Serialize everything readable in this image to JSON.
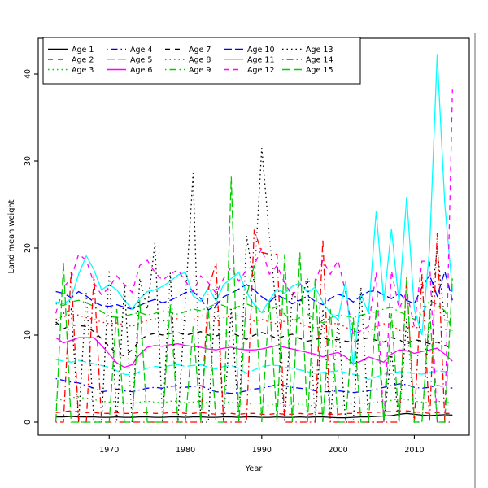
{
  "chart_data": {
    "type": "line",
    "title": "",
    "xlabel": "Year",
    "ylabel": "Land mean weight",
    "x": {
      "start": 1963,
      "end": 2015,
      "step": 1
    },
    "x_ticks": [
      1970,
      1980,
      1990,
      2000,
      2010
    ],
    "y_ticks": [
      0,
      10,
      20,
      30,
      40
    ],
    "xlim": [
      1960.9,
      2017.2
    ],
    "ylim": [
      0,
      44.1
    ],
    "grid": "off",
    "legend": {
      "position": "top-left-inside",
      "columns": 3,
      "rows_per_column": 3,
      "border": true
    },
    "palette": {
      "black": "#000000",
      "red": "#FF0000",
      "green": "#00CD00",
      "blue": "#0000FF",
      "cyan": "#00FFFF",
      "magenta": "#FF00FF"
    },
    "series": [
      {
        "name": "Age 1",
        "color": "#000000",
        "linetype": "solid",
        "values": [
          0.6,
          0.6,
          0.65,
          0.6,
          0.6,
          0.6,
          0.55,
          0.55,
          0.6,
          0.55,
          0.55,
          0.6,
          0.6,
          0.55,
          0.55,
          0.6,
          0.6,
          0.55,
          0.6,
          0.6,
          0.55,
          0.55,
          0.6,
          0.6,
          0.55,
          0.6,
          0.6,
          0.55,
          0.55,
          0.6,
          0.55,
          0.55,
          0.6,
          0.55,
          0.6,
          0.6,
          0.55,
          0.5,
          0.5,
          0.55,
          0.6,
          0.6,
          0.65,
          0.7,
          0.75,
          0.9,
          1.0,
          0.9,
          0.8,
          0.75,
          0.8,
          0.85,
          0.8
        ]
      },
      {
        "name": "Age 2",
        "color": "#FF0000",
        "linetype": "dashed",
        "values": [
          1.1,
          1.2,
          1.3,
          1.2,
          1.1,
          1.1,
          1.0,
          1.0,
          1.1,
          1.0,
          1.0,
          1.1,
          1.1,
          1.0,
          1.0,
          1.1,
          1.1,
          1.0,
          1.0,
          1.1,
          1.0,
          0.9,
          1.0,
          1.0,
          0.9,
          1.0,
          1.0,
          0.9,
          0.9,
          1.0,
          0.9,
          0.9,
          1.0,
          0.9,
          1.0,
          1.0,
          0.9,
          0.9,
          1.0,
          1.0,
          1.1,
          1.1,
          1.1,
          1.2,
          1.2,
          1.3,
          1.3,
          1.2,
          1.1,
          1.0,
          1.1,
          1.0,
          1.0
        ]
      },
      {
        "name": "Age 3",
        "color": "#00CD00",
        "linetype": "dotted",
        "values": [
          2.5,
          2.6,
          2.8,
          2.9,
          2.7,
          2.6,
          2.4,
          2.3,
          2.4,
          2.2,
          2.1,
          2.3,
          2.4,
          2.3,
          2.2,
          2.4,
          2.4,
          2.2,
          2.3,
          2.4,
          2.2,
          2.1,
          2.3,
          2.3,
          2.1,
          2.0,
          2.2,
          2.1,
          1.9,
          2.2,
          2.0,
          1.9,
          2.1,
          1.8,
          2.0,
          2.1,
          1.9,
          1.8,
          2.0,
          2.1,
          2.2,
          2.1,
          2.3,
          2.4,
          2.5,
          2.7,
          2.6,
          2.4,
          2.3,
          2.2,
          2.4,
          2.3,
          2.2
        ]
      },
      {
        "name": "Age 4",
        "color": "#0000FF",
        "linetype": "dotdash",
        "values": [
          5.0,
          4.8,
          4.6,
          4.5,
          4.2,
          3.9,
          3.5,
          3.6,
          3.8,
          3.6,
          3.5,
          3.7,
          3.9,
          4.0,
          3.9,
          4.1,
          4.2,
          4.0,
          4.1,
          4.2,
          3.8,
          3.5,
          3.4,
          3.3,
          3.4,
          3.6,
          3.8,
          3.9,
          4.1,
          4.3,
          4.2,
          4.0,
          3.9,
          3.8,
          3.6,
          3.5,
          3.5,
          3.6,
          3.5,
          3.4,
          3.5,
          3.6,
          3.8,
          4.0,
          4.2,
          4.4,
          4.3,
          4.0,
          3.9,
          4.0,
          4.2,
          4.1,
          3.9
        ]
      },
      {
        "name": "Age 5",
        "color": "#00FFFF",
        "linetype": "longdash",
        "values": [
          7.2,
          7.0,
          6.9,
          7.1,
          6.9,
          6.7,
          6.5,
          6.3,
          5.9,
          5.5,
          5.4,
          5.8,
          6.2,
          6.4,
          6.3,
          6.5,
          6.6,
          6.4,
          6.5,
          6.6,
          6.3,
          6.1,
          6.4,
          6.5,
          6.2,
          5.6,
          6.0,
          6.4,
          6.5,
          6.5,
          6.3,
          6.2,
          6.0,
          5.8,
          5.6,
          5.7,
          5.8,
          5.9,
          5.7,
          5.5,
          5.3,
          4.9,
          5.2,
          5.5,
          5.6,
          5.8,
          5.7,
          5.6,
          5.5,
          5.7,
          5.9,
          5.8,
          5.6
        ]
      },
      {
        "name": "Age 6",
        "color": "#FF00FF",
        "linetype": "solid",
        "values": [
          9.7,
          9.1,
          9.4,
          9.7,
          9.7,
          9.7,
          8.8,
          7.8,
          6.8,
          6.3,
          6.6,
          7.8,
          8.6,
          8.8,
          8.7,
          8.9,
          9.0,
          8.8,
          8.7,
          8.6,
          8.4,
          8.3,
          8.5,
          8.6,
          8.4,
          8.3,
          8.3,
          8.4,
          8.6,
          8.8,
          8.6,
          8.4,
          8.2,
          8.0,
          7.8,
          7.5,
          7.8,
          8.0,
          7.5,
          6.7,
          7.0,
          7.5,
          7.2,
          6.9,
          7.8,
          8.3,
          8.2,
          7.9,
          8.1,
          8.3,
          8.5,
          7.8,
          7.0
        ]
      },
      {
        "name": "Age 7",
        "color": "#000000",
        "linetype": "dashed",
        "values": [
          11.5,
          10.7,
          11.2,
          11.1,
          11.0,
          10.4,
          9.6,
          8.7,
          7.9,
          7.6,
          8.3,
          9.4,
          10.0,
          10.2,
          10.0,
          10.2,
          10.3,
          10.0,
          10.2,
          10.4,
          10.0,
          9.9,
          10.2,
          10.3,
          9.9,
          9.5,
          10.0,
          10.3,
          10.0,
          9.6,
          9.9,
          10.1,
          9.6,
          9.3,
          9.5,
          9.7,
          9.4,
          9.5,
          9.3,
          9.2,
          9.5,
          9.7,
          9.4,
          9.2,
          9.7,
          9.5,
          8.9,
          9.5,
          9.3,
          9.0,
          9.2,
          8.8,
          8.5
        ]
      },
      {
        "name": "Age 8",
        "color": "#FF0000",
        "linetype": "dotted",
        "values": [
          11.8,
          12.1,
          12.4,
          12.3,
          12.0,
          11.8,
          11.5,
          11.3,
          11.4,
          11.2,
          11.0,
          11.4,
          11.7,
          11.9,
          11.6,
          11.8,
          11.9,
          11.6,
          11.8,
          12.2,
          12.3,
          11.9,
          12.0,
          12.2,
          12.3,
          11.9,
          11.6,
          11.8,
          11.5,
          11.3,
          11.6,
          11.8,
          11.4,
          11.0,
          10.8,
          11.0,
          11.2,
          11.4,
          10.9,
          10.5,
          10.2,
          10.4,
          11.0,
          11.3,
          11.2,
          10.5,
          10.8,
          11.0,
          10.6,
          10.9,
          11.2,
          10.7,
          10.3
        ]
      },
      {
        "name": "Age 9",
        "color": "#00CD00",
        "linetype": "dotdash",
        "values": [
          13.6,
          13.4,
          13.8,
          14.0,
          13.7,
          13.3,
          12.7,
          12.2,
          12.0,
          12.2,
          12.4,
          12.6,
          12.3,
          12.5,
          12.8,
          12.6,
          12.4,
          12.7,
          13.0,
          12.8,
          13.2,
          13.6,
          13.4,
          12.9,
          13.3,
          13.6,
          13.2,
          12.6,
          12.9,
          13.3,
          12.4,
          11.6,
          12.0,
          12.4,
          11.8,
          11.4,
          12.0,
          12.3,
          12.2,
          12.0,
          12.3,
          12.5,
          12.7,
          13.0,
          13.2,
          12.7,
          12.3,
          11.8,
          12.5,
          14.0,
          13.5,
          12.8,
          10.5
        ]
      },
      {
        "name": "Age 10",
        "color": "#0000FF",
        "linetype": "longdash",
        "values": [
          15.0,
          14.8,
          14.3,
          15.0,
          14.5,
          13.8,
          13.4,
          13.3,
          13.5,
          13.2,
          13.0,
          13.4,
          13.8,
          14.1,
          13.7,
          14.0,
          14.4,
          14.9,
          15.0,
          14.2,
          12.9,
          13.4,
          14.4,
          14.8,
          15.3,
          15.8,
          15.2,
          14.4,
          13.8,
          14.6,
          14.2,
          13.6,
          14.0,
          14.5,
          13.9,
          13.5,
          14.2,
          14.7,
          14.4,
          13.8,
          14.5,
          15.0,
          15.1,
          14.6,
          14.2,
          14.8,
          14.0,
          13.6,
          15.5,
          16.9,
          14.5,
          17.3,
          14.0
        ]
      },
      {
        "name": "Age 11",
        "color": "#00FFFF",
        "linetype": "solid",
        "values": [
          13.8,
          13.6,
          14.2,
          17.0,
          19.1,
          17.5,
          15.2,
          15.8,
          15.2,
          14.0,
          13.0,
          14.2,
          15.0,
          15.2,
          15.6,
          16.2,
          16.9,
          17.2,
          14.5,
          13.9,
          15.5,
          13.9,
          15.8,
          16.5,
          17.2,
          14.9,
          13.5,
          12.6,
          14.0,
          15.3,
          14.8,
          15.6,
          16.0,
          14.9,
          15.5,
          13.8,
          12.5,
          11.8,
          16.2,
          6.5,
          14.7,
          12.5,
          24.2,
          13.9,
          22.2,
          13.6,
          25.9,
          13.0,
          10.0,
          20.0,
          42.2,
          25.0,
          15.0
        ]
      },
      {
        "name": "Age 12",
        "color": "#FF00FF",
        "linetype": "dashed",
        "values": [
          12.5,
          15.5,
          16.5,
          19.3,
          18.6,
          16.0,
          14.6,
          15.5,
          16.8,
          15.8,
          14.9,
          18.0,
          18.6,
          17.2,
          16.3,
          17.0,
          17.5,
          16.2,
          15.0,
          16.8,
          16.0,
          14.8,
          16.5,
          17.8,
          16.2,
          17.5,
          18.0,
          20.0,
          17.0,
          18.0,
          16.0,
          14.5,
          15.8,
          16.2,
          16.0,
          18.6,
          17.0,
          18.6,
          14.9,
          10.0,
          10.5,
          11.0,
          17.2,
          0,
          17.4,
          13.0,
          15.0,
          11.0,
          18.5,
          18.5,
          0,
          0,
          38.2
        ]
      },
      {
        "name": "Age 13",
        "color": "#000000",
        "linetype": "dotted",
        "values": [
          11.2,
          12.5,
          13.0,
          0,
          15.0,
          0,
          0,
          17.5,
          0,
          15.8,
          0,
          16.5,
          13.0,
          20.6,
          0,
          17.2,
          0,
          14.0,
          28.6,
          0,
          0,
          16.0,
          0,
          13.0,
          0,
          21.4,
          16.0,
          31.5,
          21.4,
          12.0,
          0,
          15.0,
          13.5,
          16.5,
          0,
          13.0,
          0,
          12.0,
          0,
          0,
          15.5,
          0,
          0,
          0,
          8.0,
          0,
          11.9,
          0,
          0,
          12.0,
          20.0,
          11.5,
          12.0
        ]
      },
      {
        "name": "Age 14",
        "color": "#FF0000",
        "linetype": "dotdash",
        "values": [
          0,
          0,
          17.4,
          0,
          0,
          16.9,
          0,
          0,
          0,
          0,
          0,
          0,
          0,
          0,
          0,
          0,
          0,
          0,
          0,
          0,
          15.3,
          18.3,
          0,
          0,
          0,
          0,
          22.1,
          19.5,
          19.3,
          19.3,
          0,
          0,
          0,
          0,
          0,
          21.0,
          0,
          0,
          0,
          0,
          0,
          0,
          0,
          0,
          0,
          0,
          16.7,
          0,
          17.0,
          0,
          21.7,
          0,
          0
        ]
      },
      {
        "name": "Age 15",
        "color": "#00CD00",
        "linetype": "longdash",
        "values": [
          0,
          18.3,
          0,
          0,
          0,
          0,
          0,
          0,
          13.0,
          0,
          0,
          14.0,
          0,
          0,
          0,
          13.5,
          0,
          0,
          11.0,
          0,
          13.0,
          0,
          0,
          28.2,
          0,
          14.5,
          18.0,
          0,
          14.0,
          0,
          19.3,
          0,
          19.5,
          0,
          16.5,
          0,
          13.0,
          0,
          0,
          12.0,
          0,
          0,
          13.0,
          0,
          12.5,
          0,
          16.5,
          0,
          0,
          13.0,
          0,
          0,
          16.5
        ]
      }
    ]
  }
}
